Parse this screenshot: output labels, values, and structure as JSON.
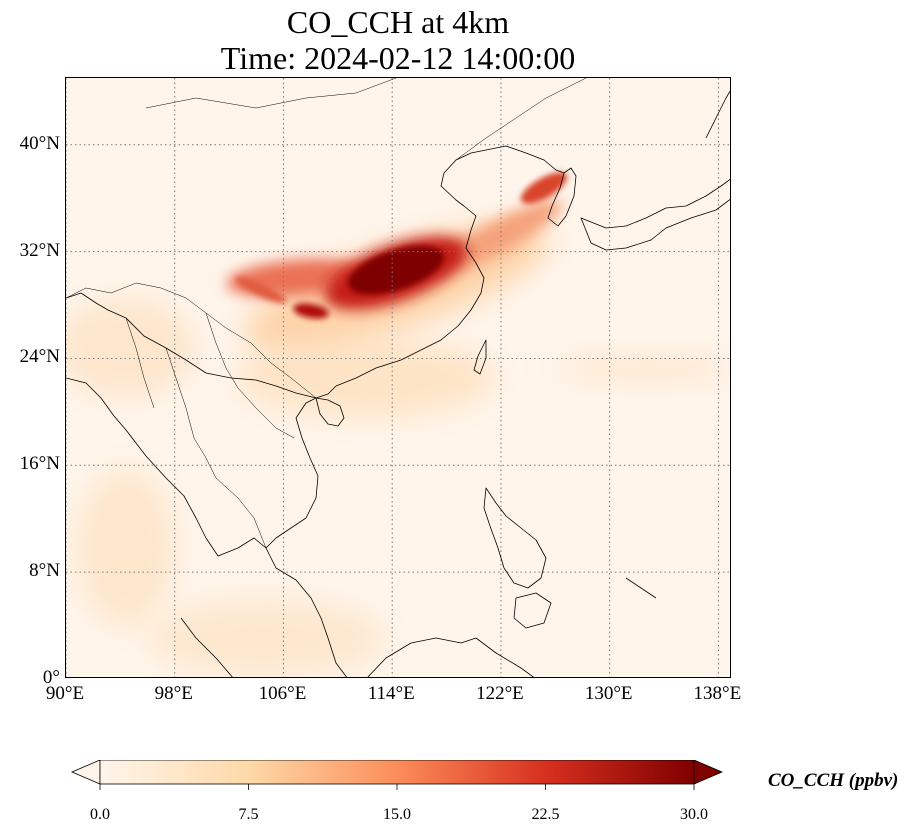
{
  "title": {
    "line1": "CO_CCH at 4km",
    "line2": "Time: 2024-02-12 14:00:00"
  },
  "map": {
    "projection": "PlateCarree",
    "lon_range": [
      90,
      139
    ],
    "lat_range": [
      0,
      45
    ],
    "gridlines": "dotted",
    "coastlines": true,
    "borders": true,
    "lat_ticks": [
      {
        "value": 40,
        "label": "40°N"
      },
      {
        "value": 32,
        "label": "32°N"
      },
      {
        "value": 24,
        "label": "24°N"
      },
      {
        "value": 16,
        "label": "16°N"
      },
      {
        "value": 8,
        "label": "8°N"
      },
      {
        "value": 0,
        "label": "0°"
      }
    ],
    "lon_ticks": [
      {
        "value": 90,
        "label": "90°E"
      },
      {
        "value": 98,
        "label": "98°E"
      },
      {
        "value": 106,
        "label": "106°E"
      },
      {
        "value": 114,
        "label": "114°E"
      },
      {
        "value": 122,
        "label": "122°E"
      },
      {
        "value": 130,
        "label": "130°E"
      },
      {
        "value": 138,
        "label": "138°E"
      }
    ],
    "field": {
      "variable": "CO_CCH",
      "units": "ppbv",
      "plume_core_lon_lat": [
        114,
        31
      ],
      "plume_extent_lon": [
        102,
        127
      ],
      "plume_extent_lat": [
        28,
        37
      ]
    }
  },
  "colorbar": {
    "title": "CO_CCH (ppbv)",
    "colormap": "OrRd",
    "range": [
      0,
      30
    ],
    "extend": "both",
    "ticks": [
      {
        "value": 0,
        "label": "0.0"
      },
      {
        "value": 7.5,
        "label": "7.5"
      },
      {
        "value": 15,
        "label": "15.0"
      },
      {
        "value": 22.5,
        "label": "22.5"
      },
      {
        "value": 30,
        "label": "30.0"
      }
    ],
    "colors": [
      "#fff5eb",
      "#fdd9a8",
      "#fc8d59",
      "#d7301f",
      "#7f0000"
    ]
  }
}
